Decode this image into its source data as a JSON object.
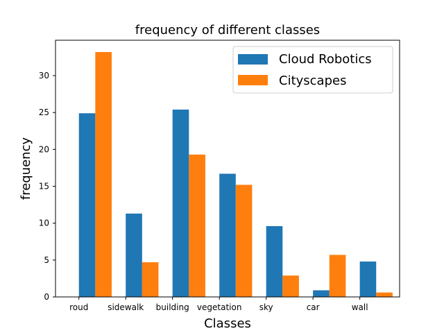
{
  "chart_data": {
    "type": "bar",
    "title": "frequency of different classes",
    "xlabel": "Classes",
    "ylabel": "frequency",
    "categories": [
      "roud",
      "sidewalk",
      "building",
      "vegetation",
      "sky",
      "car",
      "wall"
    ],
    "series": [
      {
        "name": "Cloud Robotics",
        "color": "#1f77b4",
        "values": [
          24.9,
          11.3,
          25.4,
          16.7,
          9.6,
          0.9,
          4.8
        ]
      },
      {
        "name": "Cityscapes",
        "color": "#ff7f0e",
        "values": [
          33.2,
          4.7,
          19.3,
          15.2,
          2.9,
          5.7,
          0.6
        ]
      }
    ],
    "ylim": [
      0,
      34.8
    ],
    "yticks": [
      0,
      5,
      10,
      15,
      20,
      25,
      30
    ],
    "grid": false,
    "legend_position": "top-right"
  }
}
